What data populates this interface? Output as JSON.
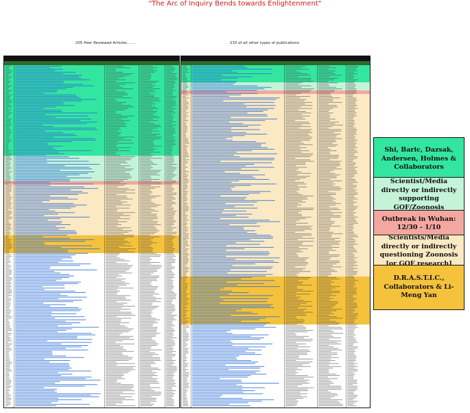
{
  "title": "\"The Arc of Inquiry Bends towards Enlightenment\"",
  "left_panel": {
    "caption": "205 Peer Reviewed Articles......."
  },
  "right_panel": {
    "caption": "233 of all other types of publications"
  },
  "legend": [
    {
      "label": "Shi, Baric, Dazsak, Andersen, Holmes & Collaborators",
      "color": "#33e6a0"
    },
    {
      "label": "Scientist/Media directly or indirectly supporting GOF/Zoonosis",
      "color": "#c4f3d8"
    },
    {
      "label": "Outbreak in Wuhan: 12/30 - 1/10",
      "color": "#f2a7a0"
    },
    {
      "label": "Scientists/Media directly or indirectly questioning Zoonosis [or GOF research]",
      "color": "#fbe9c4"
    },
    {
      "label": "D.R.A.S.T.I.C., Collaborators & Li-Meng Yan",
      "color": "#f5c23c"
    }
  ],
  "colors": {
    "title": "#d01818",
    "link": "#2b6fd6",
    "text": "#444444",
    "header": "#111111",
    "outbreak_band": "#f2a7a0",
    "white": "#ffffff"
  }
}
